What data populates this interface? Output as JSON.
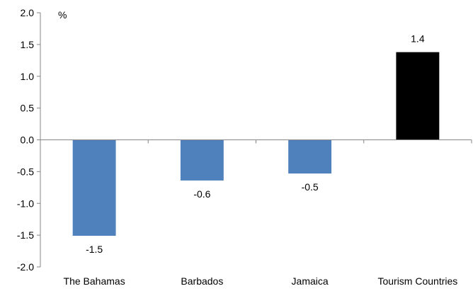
{
  "chart_data": {
    "type": "bar",
    "title": "",
    "xlabel": "",
    "ylabel": "%",
    "categories": [
      "The Bahamas",
      "Barbados",
      "Jamaica",
      "Tourism Countries"
    ],
    "values": [
      -1.5,
      -0.6,
      -0.5,
      1.4
    ],
    "bar_values": [
      -1.51,
      -0.64,
      -0.53,
      1.38
    ],
    "data_labels": [
      "-1.5",
      "-0.6",
      "-0.5",
      "1.4"
    ],
    "bar_colors": [
      "#4F81BD",
      "#4F81BD",
      "#4F81BD",
      "#000000"
    ],
    "ylim": [
      -2.0,
      2.0
    ],
    "y_ticks": [
      2.0,
      1.5,
      1.0,
      0.5,
      0.0,
      -0.5,
      -1.0,
      -1.5,
      -2.0
    ],
    "y_tick_labels": [
      "2.0",
      "1.5",
      "1.0",
      "0.5",
      "0.0",
      "-0.5",
      "-1.0",
      "-1.5",
      "-2.0"
    ],
    "grid": false,
    "legend": "none"
  }
}
